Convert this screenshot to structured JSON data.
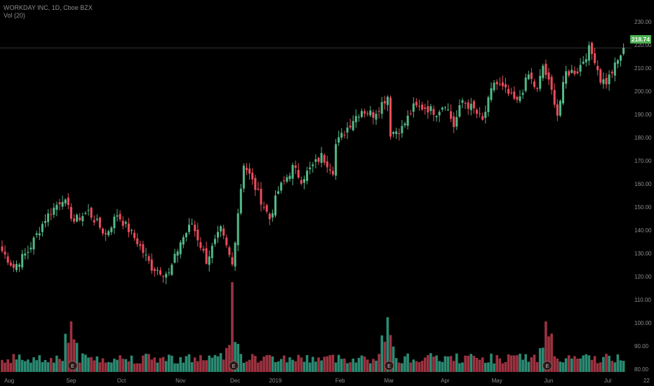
{
  "header": {
    "symbol_line": "WORKDAY INC, 1D, Cboe BZX",
    "indicator_line": "Vol (20)"
  },
  "last_price_label": "218.74",
  "colors": {
    "background": "#000000",
    "up": "#53b987",
    "down": "#eb4d5c",
    "volume_up": "#2b8a72",
    "volume_down": "#9c3240",
    "axis_text": "#8c8c8c",
    "price_line": "#666666",
    "last_price_tag": "#4caf50"
  },
  "chart_data": {
    "type": "candlestick",
    "title": "",
    "symbol": "WORKDAY INC",
    "interval": "1D",
    "exchange": "Cboe BZX",
    "indicator": "Vol (20)",
    "last_price": 218.74,
    "ylim": [
      78,
      233
    ],
    "y_ticks": [
      80,
      90,
      100,
      110,
      120,
      130,
      140,
      150,
      160,
      170,
      180,
      190,
      200,
      210,
      220,
      230
    ],
    "y_tick_labels": [
      "80.00",
      "90.00",
      "100.00",
      "110.00",
      "120.00",
      "130.00",
      "140.00",
      "150.00",
      "160.00",
      "170.00",
      "180.00",
      "190.00",
      "200.00",
      "210.00",
      "220.00",
      "230.00"
    ],
    "x_tick_labels": [
      "Aug",
      "Sep",
      "Oct",
      "Nov",
      "Dec",
      "2019",
      "Feb",
      "Mar",
      "Apr",
      "May",
      "Jun",
      "Jul",
      "22"
    ],
    "x_tick_bars": [
      2.5,
      24,
      41.5,
      62,
      81,
      95,
      117.5,
      134.5,
      154,
      172,
      190,
      210.5,
      224
    ],
    "earnings_markers": [
      24.5,
      80.5,
      134.5,
      189.5
    ],
    "earnings_label": "E",
    "price_path": [
      [
        0,
        131
      ],
      [
        4,
        124
      ],
      [
        9,
        131
      ],
      [
        15,
        145
      ],
      [
        21,
        154
      ],
      [
        25,
        144
      ],
      [
        30,
        148
      ],
      [
        36,
        138
      ],
      [
        40,
        147
      ],
      [
        47,
        135
      ],
      [
        52,
        124
      ],
      [
        58,
        121
      ],
      [
        62,
        135
      ],
      [
        66,
        143
      ],
      [
        71,
        127
      ],
      [
        76,
        140
      ],
      [
        80,
        125
      ],
      [
        82,
        148
      ],
      [
        84,
        169
      ],
      [
        87,
        161
      ],
      [
        93,
        145
      ],
      [
        96,
        157
      ],
      [
        101,
        167
      ],
      [
        104,
        162
      ],
      [
        111,
        172
      ],
      [
        115,
        166
      ],
      [
        116,
        177
      ],
      [
        122,
        188
      ],
      [
        125,
        192
      ],
      [
        129,
        190
      ],
      [
        134,
        198
      ],
      [
        135,
        182
      ],
      [
        139,
        184
      ],
      [
        143,
        193
      ],
      [
        147,
        193
      ],
      [
        151,
        191
      ],
      [
        154,
        195
      ],
      [
        157,
        185
      ],
      [
        160,
        196
      ],
      [
        164,
        192
      ],
      [
        167,
        187
      ],
      [
        171,
        204
      ],
      [
        175,
        200
      ],
      [
        179,
        195
      ],
      [
        183,
        207
      ],
      [
        186,
        200
      ],
      [
        188,
        211
      ],
      [
        192,
        196
      ],
      [
        193,
        190
      ],
      [
        196,
        208
      ],
      [
        200,
        209
      ],
      [
        204,
        218
      ],
      [
        206,
        214
      ],
      [
        208,
        205
      ],
      [
        210,
        204
      ],
      [
        214,
        213
      ],
      [
        216,
        218.74
      ]
    ],
    "volume_scale": 0.155,
    "volume_spikes": [
      [
        24,
        29
      ],
      [
        80,
        47
      ],
      [
        134,
        30
      ],
      [
        189,
        29
      ]
    ]
  }
}
